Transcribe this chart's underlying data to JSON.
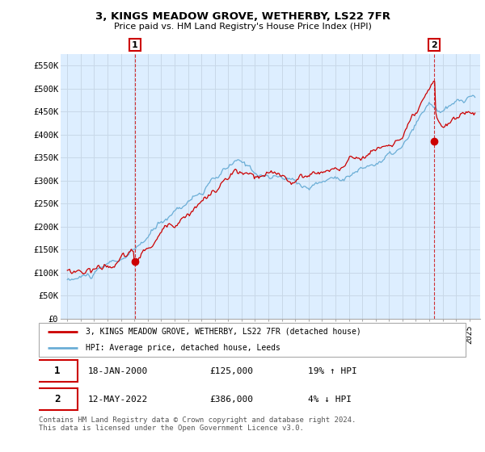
{
  "title": "3, KINGS MEADOW GROVE, WETHERBY, LS22 7FR",
  "subtitle": "Price paid vs. HM Land Registry's House Price Index (HPI)",
  "ylim": [
    0,
    575000
  ],
  "yticks": [
    0,
    50000,
    100000,
    150000,
    200000,
    250000,
    300000,
    350000,
    400000,
    450000,
    500000,
    550000
  ],
  "ytick_labels": [
    "£0",
    "£50K",
    "£100K",
    "£150K",
    "£200K",
    "£250K",
    "£300K",
    "£350K",
    "£400K",
    "£450K",
    "£500K",
    "£550K"
  ],
  "hpi_color": "#6baed6",
  "price_color": "#cc0000",
  "chart_bg": "#ddeeff",
  "marker1_year": 2000.05,
  "marker1_value": 125000,
  "marker2_year": 2022.37,
  "marker2_value": 386000,
  "legend_line1": "3, KINGS MEADOW GROVE, WETHERBY, LS22 7FR (detached house)",
  "legend_line2": "HPI: Average price, detached house, Leeds",
  "annotation1_date": "18-JAN-2000",
  "annotation1_price": "£125,000",
  "annotation1_hpi": "19% ↑ HPI",
  "annotation2_date": "12-MAY-2022",
  "annotation2_price": "£386,000",
  "annotation2_hpi": "4% ↓ HPI",
  "footer": "Contains HM Land Registry data © Crown copyright and database right 2024.\nThis data is licensed under the Open Government Licence v3.0.",
  "background_color": "#ffffff",
  "grid_color": "#c8d8e8"
}
